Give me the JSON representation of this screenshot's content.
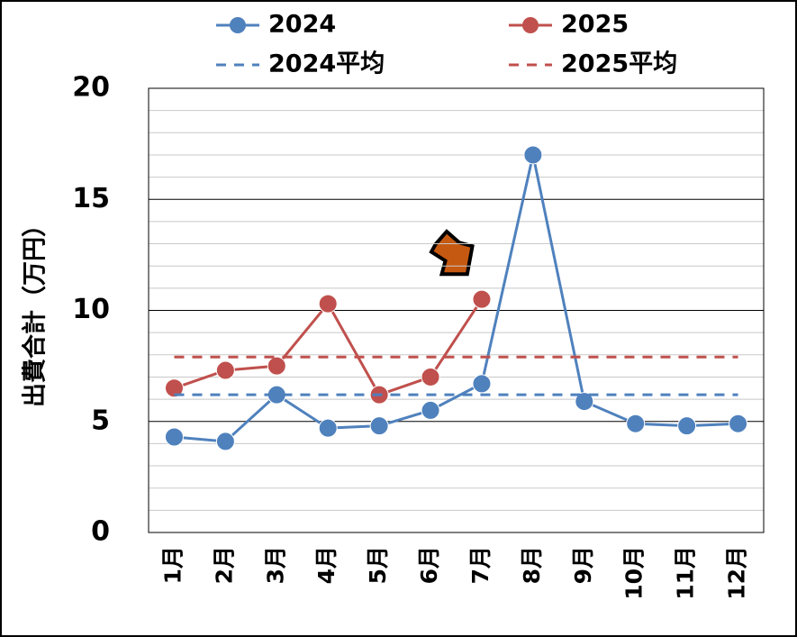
{
  "chart_data": {
    "type": "line",
    "y_label": "出費合計（万円）",
    "categories": [
      "1月",
      "2月",
      "3月",
      "4月",
      "5月",
      "6月",
      "7月",
      "8月",
      "9月",
      "10月",
      "11月",
      "12月"
    ],
    "series": [
      {
        "name": "2024",
        "color": "#4f81bd",
        "values": [
          4.3,
          4.1,
          6.2,
          4.7,
          4.8,
          5.5,
          6.7,
          17.0,
          5.9,
          4.9,
          4.8,
          4.9
        ]
      },
      {
        "name": "2025",
        "color": "#c0504d",
        "values": [
          6.5,
          7.3,
          7.5,
          10.3,
          6.2,
          7.0,
          10.5,
          null,
          null,
          null,
          null,
          null
        ]
      },
      {
        "name": "2024平均",
        "color": "#4f81bd",
        "dashed": true,
        "values": [
          6.2,
          6.2,
          6.2,
          6.2,
          6.2,
          6.2,
          6.2,
          6.2,
          6.2,
          6.2,
          6.2,
          6.2
        ]
      },
      {
        "name": "2025平均",
        "color": "#c0504d",
        "dashed": true,
        "values": [
          7.9,
          7.9,
          7.9,
          7.9,
          7.9,
          7.9,
          7.9,
          7.9,
          7.9,
          7.9,
          7.9,
          7.9
        ]
      }
    ],
    "ylim": [
      0,
      20
    ],
    "yticks": [
      0,
      5,
      10,
      15,
      20
    ],
    "yminorticks": [
      1,
      2,
      3,
      4,
      6,
      7,
      8,
      9,
      11,
      12,
      13,
      14,
      16,
      17,
      18,
      19
    ],
    "grid": true
  }
}
